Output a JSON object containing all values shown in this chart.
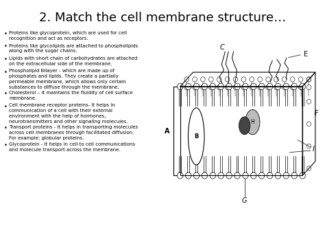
{
  "title": "2. Match the cell membrane structure…",
  "title_fontsize": 13,
  "background_color": "#ffffff",
  "text_color": "#000000",
  "bullet_points": [
    "Proteins like glycoprotein, which are used for cell\nrecognition and act as receptors.",
    "Proteins like glycolipids are attached to phospholipids\nalong with the sugar chains.",
    "Lipids with short chain of carbohydrates are attached\non the extracellular side of the membrane.",
    "Phospholipid Bilayer - which are made up of\nphosphates and lipids. They create a partially\npermeable membrane, which allows only certain\nsubstances to diffuse through the membrane.",
    "Cholesterol – it maintains the fluidity of cell surface\nmembrane.",
    "Cell membrane receptor proteins- It helps in\ncommunication of a cell with their external\nenvironment with the help of hormones,\nneurotransmitters and other signaling molecules.",
    "Transport proteins - It helps in transporting molecules\nacross cell membranes through facilitated diffusion.\nFor example: globular proteins.",
    "Glycoprotein - It helps in cell to cell communications\nand molecule transport across the membrane."
  ],
  "bullet_fontsize": 5.0
}
